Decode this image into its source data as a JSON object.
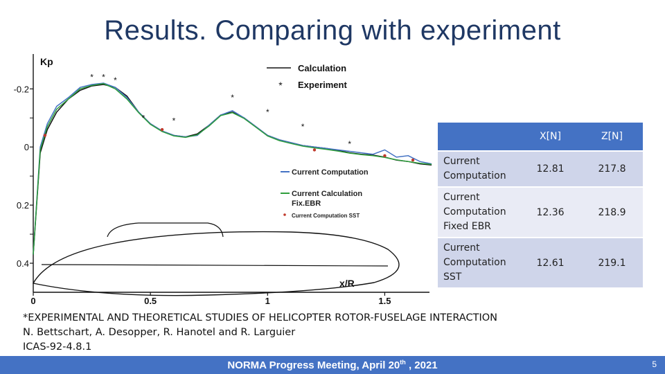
{
  "slide": {
    "title": "Results. Comparing with experiment",
    "page_number": "5"
  },
  "footer": {
    "text_main": "NORMA Progress Meeting, April 20",
    "text_sup": "th",
    "text_tail": " , 2021"
  },
  "reference": {
    "line1": "*EXPERIMENTAL AND THEORETICAL STUDIES OF HELICOPTER ROTOR-FUSELAGE INTERACTION",
    "line2": "N. Bettschart, A. Desopper, R. Hanotel and R. Larguier",
    "line3": "ICAS-92-4.8.1"
  },
  "table": {
    "headers": [
      "",
      "X[N]",
      "Z[N]"
    ],
    "rows": [
      {
        "label_lines": [
          "Current",
          "Computation"
        ],
        "x": "12.81",
        "z": "217.8"
      },
      {
        "label_lines": [
          "Current",
          "Computation",
          "Fixed EBR"
        ],
        "x": "12.36",
        "z": "218.9"
      },
      {
        "label_lines": [
          "Current",
          "Computation",
          "SST"
        ],
        "x": "12.61",
        "z": "219.1"
      }
    ]
  },
  "chart_data": {
    "type": "line",
    "ylabel": "Kp",
    "xlabel": "x/R",
    "x_ticks": [
      "0",
      "0.5",
      "1",
      "1.5"
    ],
    "y_ticks": [
      "-0.2",
      "0",
      "0.2",
      "0.4"
    ],
    "xlim": [
      0,
      1.75
    ],
    "ylim": [
      0.5,
      -0.32
    ],
    "y_inverted": true,
    "legend_top": [
      {
        "label": "Calculation",
        "style": "line"
      },
      {
        "label": "Experiment",
        "style": "asterisk"
      }
    ],
    "legend_bottom": [
      {
        "label": "Current Computation",
        "style": "line",
        "color": "#4472c4"
      },
      {
        "label": "Current Calculation",
        "label2": "Fix.EBR",
        "style": "line",
        "color": "#2e9e3c"
      },
      {
        "label": "Current Computation SST",
        "style": "dot",
        "color": "#c0392b"
      }
    ],
    "series": [
      {
        "name": "Calculation",
        "color": "#111111",
        "points": [
          [
            0.0,
            0.37
          ],
          [
            0.03,
            0.02
          ],
          [
            0.06,
            -0.06
          ],
          [
            0.1,
            -0.12
          ],
          [
            0.15,
            -0.165
          ],
          [
            0.2,
            -0.195
          ],
          [
            0.25,
            -0.21
          ],
          [
            0.3,
            -0.215
          ],
          [
            0.35,
            -0.205
          ],
          [
            0.4,
            -0.175
          ],
          [
            0.45,
            -0.12
          ],
          [
            0.5,
            -0.08
          ],
          [
            0.55,
            -0.055
          ],
          [
            0.6,
            -0.04
          ],
          [
            0.65,
            -0.035
          ],
          [
            0.7,
            -0.045
          ],
          [
            0.75,
            -0.075
          ],
          [
            0.8,
            -0.11
          ],
          [
            0.85,
            -0.12
          ],
          [
            0.9,
            -0.1
          ],
          [
            0.95,
            -0.07
          ],
          [
            1.0,
            -0.04
          ],
          [
            1.05,
            -0.025
          ],
          [
            1.1,
            -0.015
          ],
          [
            1.15,
            -0.005
          ],
          [
            1.2,
            0.0
          ],
          [
            1.25,
            0.005
          ],
          [
            1.3,
            0.012
          ],
          [
            1.35,
            0.02
          ],
          [
            1.4,
            0.025
          ],
          [
            1.45,
            0.028
          ],
          [
            1.5,
            0.035
          ],
          [
            1.55,
            0.045
          ],
          [
            1.6,
            0.05
          ],
          [
            1.65,
            0.058
          ],
          [
            1.7,
            0.062
          ]
        ]
      },
      {
        "name": "Current Computation",
        "color": "#4472c4",
        "points": [
          [
            0.0,
            0.37
          ],
          [
            0.03,
            0.0
          ],
          [
            0.06,
            -0.08
          ],
          [
            0.1,
            -0.14
          ],
          [
            0.15,
            -0.17
          ],
          [
            0.2,
            -0.205
          ],
          [
            0.25,
            -0.215
          ],
          [
            0.3,
            -0.22
          ],
          [
            0.35,
            -0.205
          ],
          [
            0.4,
            -0.17
          ],
          [
            0.45,
            -0.12
          ],
          [
            0.5,
            -0.08
          ],
          [
            0.55,
            -0.055
          ],
          [
            0.6,
            -0.04
          ],
          [
            0.65,
            -0.035
          ],
          [
            0.7,
            -0.04
          ],
          [
            0.75,
            -0.075
          ],
          [
            0.8,
            -0.11
          ],
          [
            0.85,
            -0.125
          ],
          [
            0.9,
            -0.1
          ],
          [
            0.95,
            -0.07
          ],
          [
            1.0,
            -0.04
          ],
          [
            1.05,
            -0.025
          ],
          [
            1.1,
            -0.015
          ],
          [
            1.15,
            -0.005
          ],
          [
            1.2,
            0.0
          ],
          [
            1.25,
            0.005
          ],
          [
            1.3,
            0.01
          ],
          [
            1.35,
            0.015
          ],
          [
            1.4,
            0.02
          ],
          [
            1.45,
            0.025
          ],
          [
            1.5,
            0.01
          ],
          [
            1.55,
            0.035
          ],
          [
            1.6,
            0.03
          ],
          [
            1.65,
            0.05
          ],
          [
            1.7,
            0.058
          ]
        ]
      },
      {
        "name": "Current Calculation Fix.EBR",
        "color": "#2e9e3c",
        "points": [
          [
            0.0,
            0.37
          ],
          [
            0.03,
            0.01
          ],
          [
            0.06,
            -0.07
          ],
          [
            0.1,
            -0.13
          ],
          [
            0.15,
            -0.165
          ],
          [
            0.2,
            -0.2
          ],
          [
            0.25,
            -0.212
          ],
          [
            0.3,
            -0.218
          ],
          [
            0.35,
            -0.2
          ],
          [
            0.4,
            -0.165
          ],
          [
            0.45,
            -0.118
          ],
          [
            0.5,
            -0.078
          ],
          [
            0.55,
            -0.053
          ],
          [
            0.6,
            -0.038
          ],
          [
            0.65,
            -0.033
          ],
          [
            0.7,
            -0.042
          ],
          [
            0.75,
            -0.072
          ],
          [
            0.8,
            -0.108
          ],
          [
            0.85,
            -0.118
          ],
          [
            0.9,
            -0.098
          ],
          [
            0.95,
            -0.068
          ],
          [
            1.0,
            -0.038
          ],
          [
            1.05,
            -0.022
          ],
          [
            1.1,
            -0.012
          ],
          [
            1.15,
            -0.003
          ],
          [
            1.2,
            0.003
          ],
          [
            1.25,
            0.008
          ],
          [
            1.3,
            0.014
          ],
          [
            1.35,
            0.021
          ],
          [
            1.4,
            0.026
          ],
          [
            1.45,
            0.03
          ],
          [
            1.5,
            0.036
          ],
          [
            1.55,
            0.044
          ],
          [
            1.6,
            0.05
          ],
          [
            1.65,
            0.056
          ],
          [
            1.7,
            0.06
          ]
        ]
      }
    ],
    "experiment_points": [
      [
        0.25,
        -0.24
      ],
      [
        0.3,
        -0.24
      ],
      [
        0.35,
        -0.23
      ],
      [
        0.47,
        -0.1
      ],
      [
        0.6,
        -0.09
      ],
      [
        0.85,
        -0.17
      ],
      [
        1.0,
        -0.12
      ],
      [
        1.15,
        -0.07
      ],
      [
        1.35,
        -0.01
      ]
    ],
    "sst_points": [
      [
        0.05,
        -0.04
      ],
      [
        0.55,
        -0.06
      ],
      [
        1.2,
        0.01
      ],
      [
        1.5,
        0.03
      ],
      [
        1.62,
        0.045
      ]
    ]
  }
}
